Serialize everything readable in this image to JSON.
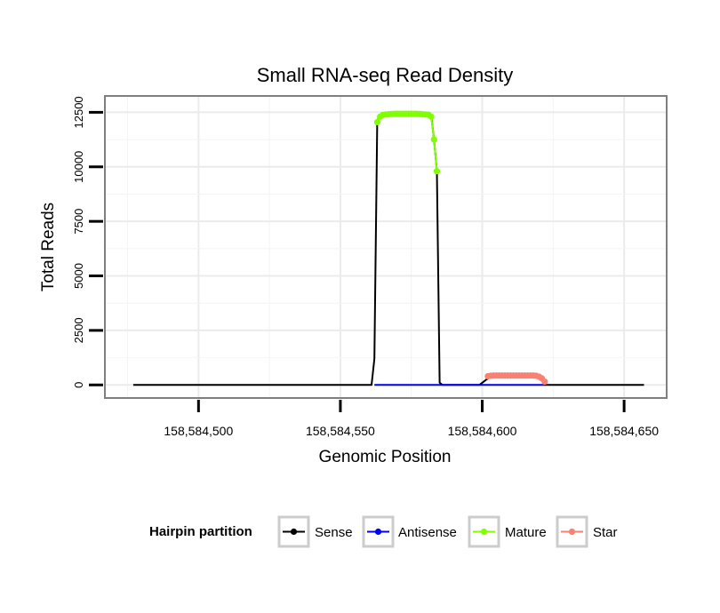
{
  "chart_data": {
    "type": "line",
    "title": "Small RNA-seq Read Density",
    "xlabel": "Genomic Position",
    "ylabel": "Total Reads",
    "xlim": [
      158584467,
      158584665
    ],
    "ylim": [
      -600,
      13250
    ],
    "x_ticks": [
      158584500,
      158584550,
      158584600,
      158584650
    ],
    "x_tick_labels": [
      "158,584,500",
      "158,584,550",
      "158,584,600",
      "158,584,650"
    ],
    "y_ticks": [
      0,
      2500,
      5000,
      7500,
      10000,
      12500
    ],
    "y_tick_labels": [
      "0",
      "2500",
      "5000",
      "7500",
      "10000",
      "12500"
    ],
    "grid": true,
    "legend": {
      "title": "Hairpin partition",
      "position": "bottom",
      "entries": [
        {
          "name": "Sense",
          "color": "#000000"
        },
        {
          "name": "Antisense",
          "color": "#0000ff"
        },
        {
          "name": "Mature",
          "color": "#7fff00"
        },
        {
          "name": "Star",
          "color": "#fa8072"
        }
      ]
    },
    "series": [
      {
        "name": "Sense",
        "color": "#000000",
        "markers": false,
        "points": [
          [
            158584477,
            0
          ],
          [
            158584536,
            0
          ],
          [
            158584540,
            0
          ],
          [
            158584561,
            0
          ],
          [
            158584562,
            1200
          ],
          [
            158584563,
            12100
          ],
          [
            158584564,
            12350
          ],
          [
            158584565,
            12400
          ],
          [
            158584567,
            12420
          ],
          [
            158584570,
            12430
          ],
          [
            158584575,
            12430
          ],
          [
            158584580,
            12420
          ],
          [
            158584582,
            12350
          ],
          [
            158584583,
            11250
          ],
          [
            158584584,
            9800
          ],
          [
            158584585,
            100
          ],
          [
            158584586,
            0
          ],
          [
            158584599,
            0
          ],
          [
            158584602,
            300
          ],
          [
            158584603,
            380
          ],
          [
            158584620,
            380
          ],
          [
            158584621,
            350
          ],
          [
            158584622,
            0
          ],
          [
            158584625,
            0
          ],
          [
            158584655,
            0
          ],
          [
            158584657,
            0
          ]
        ]
      },
      {
        "name": "Antisense",
        "color": "#0000ff",
        "markers": false,
        "points": [
          [
            158584562,
            0
          ],
          [
            158584585,
            0
          ],
          [
            158584600,
            0
          ],
          [
            158584622,
            0
          ]
        ]
      },
      {
        "name": "Mature",
        "color": "#7fff00",
        "markers": true,
        "points": [
          [
            158584563,
            12050
          ],
          [
            158584564,
            12300
          ],
          [
            158584565,
            12380
          ],
          [
            158584566,
            12400
          ],
          [
            158584567,
            12410
          ],
          [
            158584568,
            12420
          ],
          [
            158584569,
            12430
          ],
          [
            158584570,
            12430
          ],
          [
            158584571,
            12430
          ],
          [
            158584572,
            12430
          ],
          [
            158584573,
            12430
          ],
          [
            158584574,
            12430
          ],
          [
            158584575,
            12430
          ],
          [
            158584576,
            12430
          ],
          [
            158584577,
            12430
          ],
          [
            158584578,
            12420
          ],
          [
            158584579,
            12410
          ],
          [
            158584580,
            12400
          ],
          [
            158584581,
            12390
          ],
          [
            158584582,
            12300
          ],
          [
            158584583,
            11250
          ],
          [
            158584584,
            9800
          ]
        ]
      },
      {
        "name": "Star",
        "color": "#fa8072",
        "markers": true,
        "points": [
          [
            158584602,
            400
          ],
          [
            158584603,
            420
          ],
          [
            158584604,
            430
          ],
          [
            158584605,
            430
          ],
          [
            158584606,
            430
          ],
          [
            158584607,
            430
          ],
          [
            158584608,
            430
          ],
          [
            158584609,
            430
          ],
          [
            158584610,
            430
          ],
          [
            158584611,
            430
          ],
          [
            158584612,
            430
          ],
          [
            158584613,
            430
          ],
          [
            158584614,
            430
          ],
          [
            158584615,
            430
          ],
          [
            158584616,
            430
          ],
          [
            158584617,
            430
          ],
          [
            158584618,
            430
          ],
          [
            158584619,
            420
          ],
          [
            158584620,
            380
          ],
          [
            158584621,
            300
          ],
          [
            158584622,
            150
          ]
        ]
      }
    ]
  }
}
